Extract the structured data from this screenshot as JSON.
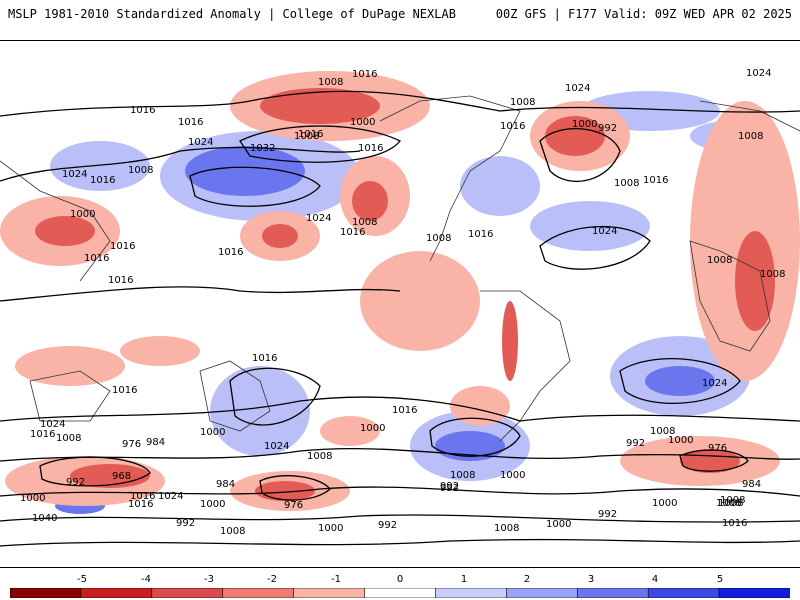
{
  "header": {
    "title_left": "MSLP 1981-2010 Standardized Anomaly | College of DuPage NEXLAB",
    "title_right": "00Z GFS | F177 Valid: 09Z WED APR 02 2025"
  },
  "colorbar": {
    "tick_labels": [
      "-5",
      "-4",
      "-3",
      "-2",
      "-1",
      "0",
      "1",
      "2",
      "3",
      "4",
      "5"
    ],
    "colors": [
      "#8b0000",
      "#c81e1e",
      "#dc4b4b",
      "#ee7b72",
      "#f9b3a7",
      "#ffffff",
      "#c9cdfb",
      "#9aa3f5",
      "#6a76ee",
      "#3a48e6",
      "#1020d8"
    ]
  },
  "contour_labels": [
    "1016",
    "1008",
    "1000",
    "1016",
    "1024",
    "1024",
    "1016",
    "992",
    "1000",
    "1008",
    "1008",
    "1016",
    "1024",
    "1008",
    "1016",
    "1016",
    "1016",
    "1008",
    "1032",
    "1024",
    "1008",
    "1016",
    "1016",
    "1000",
    "1016",
    "1024",
    "1016",
    "1008",
    "1024",
    "1016",
    "1008",
    "1008",
    "1008",
    "1016",
    "1016",
    "1016",
    "1016",
    "1016",
    "1024",
    "1016",
    "1024",
    "1008",
    "1008",
    "1008",
    "1000",
    "1024",
    "992",
    "1008",
    "1000",
    "976",
    "992",
    "1008",
    "1000",
    "1008",
    "1000",
    "976",
    "984",
    "968",
    "992",
    "1000",
    "1016",
    "1024",
    "1000",
    "984",
    "976",
    "1040",
    "992",
    "1008",
    "1000",
    "992",
    "1008",
    "1000",
    "992",
    "1008",
    "992",
    "984",
    "1016",
    "1000",
    "1016"
  ]
}
